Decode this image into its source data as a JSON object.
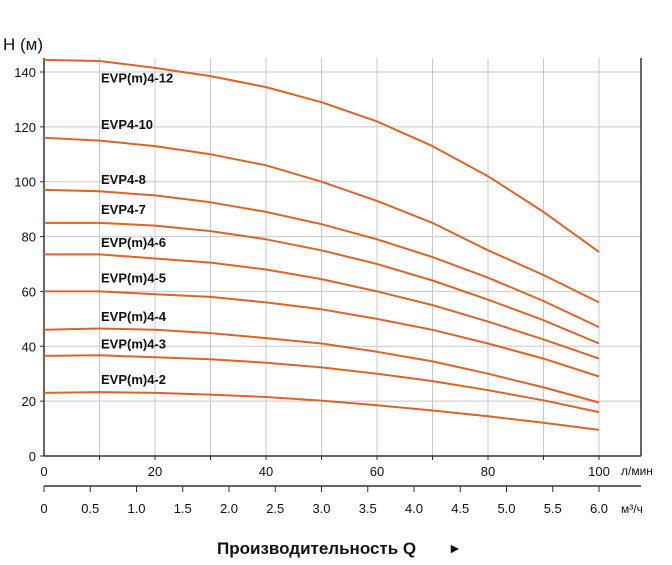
{
  "chart_data": {
    "type": "line",
    "ylabel": "H (м)",
    "xlabel": "Производительность Q",
    "xlabel_arrow": "►",
    "x_unit": "л/мин",
    "x2_unit": "м³/ч",
    "xlim": [
      0,
      107.5
    ],
    "ylim": [
      0,
      145
    ],
    "grid": true,
    "line_color": "#d9652b",
    "x_ticks": [
      0,
      20,
      40,
      60,
      80,
      100
    ],
    "y_ticks": [
      0,
      20,
      40,
      60,
      80,
      100,
      120,
      140
    ],
    "x2_ticks": [
      "0",
      "0.5",
      "1.0",
      "1.5",
      "2.0",
      "2.5",
      "3.0",
      "3.5",
      "4.0",
      "4.5",
      "5.0",
      "5.5",
      "6.0"
    ],
    "x": [
      0,
      10,
      20,
      30,
      40,
      50,
      60,
      70,
      80,
      90,
      100
    ],
    "series": [
      {
        "name": "EVP(m)4-12",
        "values": [
          144.4,
          144,
          141.5,
          138.5,
          134.5,
          129,
          122,
          113,
          102,
          89,
          74.4
        ]
      },
      {
        "name": "EVP4-10",
        "values": [
          116,
          115,
          113,
          110,
          106,
          100,
          93,
          85,
          75,
          66,
          56
        ]
      },
      {
        "name": "EVP4-8",
        "values": [
          97,
          96.5,
          95,
          92.5,
          89,
          84.5,
          79,
          72.5,
          65,
          56.5,
          47
        ]
      },
      {
        "name": "EVP4-7",
        "values": [
          85,
          85,
          84,
          82,
          79,
          75,
          70,
          64,
          57,
          49.5,
          41
        ]
      },
      {
        "name": "EVP(m)4-6",
        "values": [
          73.5,
          73.5,
          72,
          70.5,
          68,
          64.5,
          60,
          55,
          49,
          42.5,
          35.5
        ]
      },
      {
        "name": "EVP(m)4-5",
        "values": [
          60,
          60,
          59,
          58,
          56,
          53.5,
          50,
          46,
          41,
          35.5,
          29
        ]
      },
      {
        "name": "EVP(m)4-4",
        "values": [
          46,
          46.5,
          46,
          44.8,
          43,
          41,
          38,
          34.5,
          30,
          25,
          19.5
        ]
      },
      {
        "name": "EVP(m)4-3",
        "values": [
          36.5,
          36.7,
          36,
          35.3,
          34,
          32.3,
          30,
          27.3,
          24,
          20.3,
          16
        ]
      },
      {
        "name": "EVP(m)4-2",
        "values": [
          23,
          23.3,
          23,
          22.4,
          21.5,
          20.2,
          18.5,
          16.6,
          14.5,
          12.1,
          9.5
        ]
      }
    ]
  }
}
